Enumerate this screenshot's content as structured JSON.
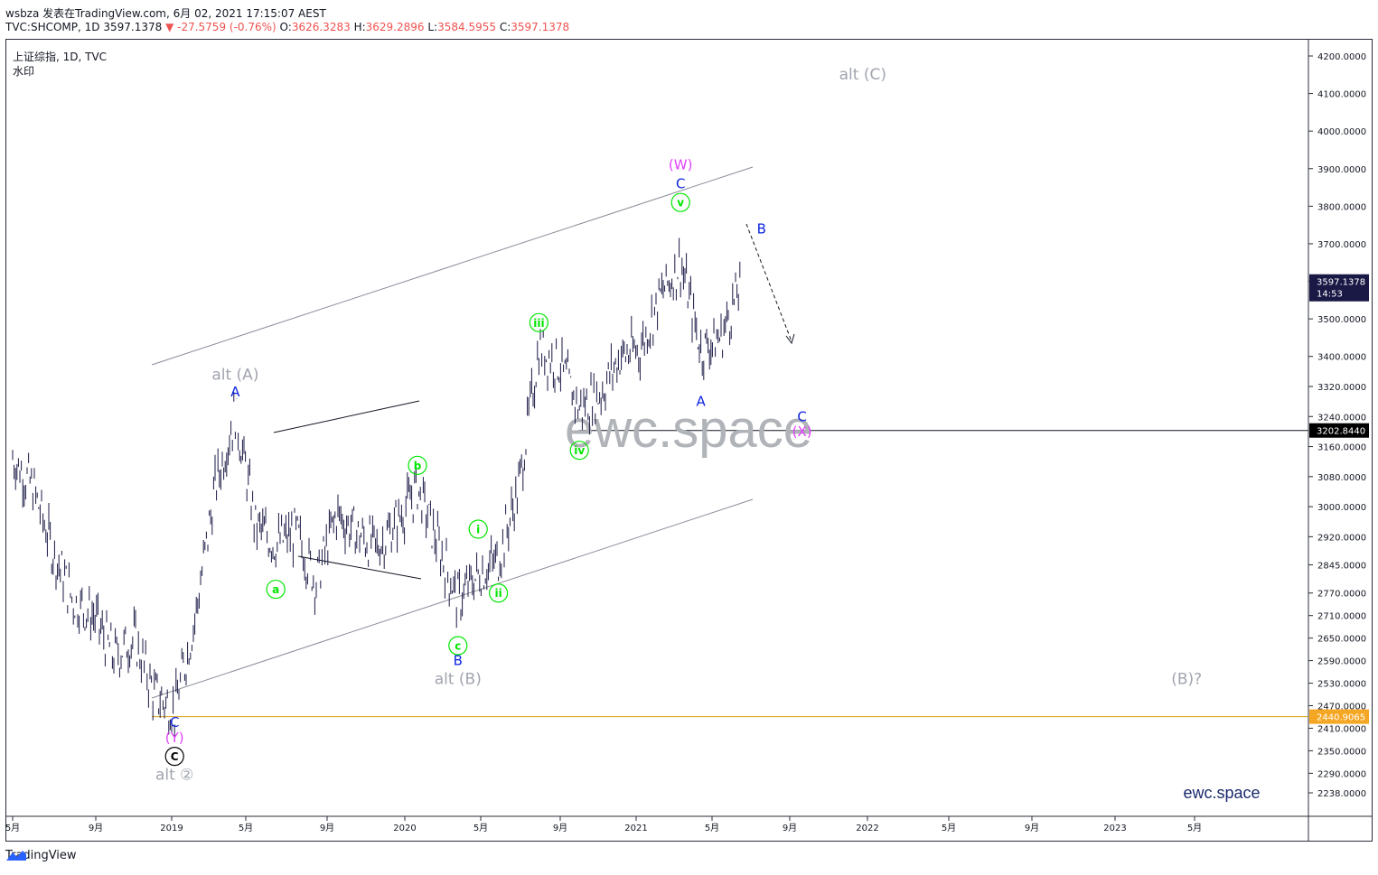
{
  "header": {
    "line1": "wsbza 发表在TradingView.com, 6月 02, 2021 17:15:07 AEST",
    "symbol": "TVC:SHCOMP, 1D 3597.1378",
    "change": "-27.5759 (-0.76%)",
    "ohlc_o_label": "O:",
    "ohlc_o": "3626.3283",
    "ohlc_h_label": "H:",
    "ohlc_h": "3629.2896",
    "ohlc_l_label": "L:",
    "ohlc_l": "3584.5955",
    "ohlc_c_label": "C:",
    "ohlc_c": "3597.1378"
  },
  "legend": {
    "title": "上证综指, 1D, TVC",
    "watermark_label": "水印"
  },
  "watermark": "ewc.space",
  "signature": "ewc.space",
  "footer": {
    "brand": "TradingView"
  },
  "colors": {
    "candles": "#1a1845",
    "magenta": "#e040fb",
    "blue": "#0d24e0",
    "green": "#00e600",
    "gray": "#a0a4ae",
    "gold": "#d4a017",
    "last_price_bg": "#1a1845",
    "support_bg": "#000000",
    "low_bg": "#f5a623"
  },
  "chart_data": {
    "type": "line",
    "title": "上证综指, 1D, TVC",
    "ylim": [
      2200,
      4250
    ],
    "y_ticks": [
      "4200.0000",
      "4100.0000",
      "4000.0000",
      "3900.0000",
      "3800.0000",
      "3700.0000",
      "3600.0000",
      "3500.0000",
      "3400.0000",
      "3320.0000",
      "3240.0000",
      "3160.0000",
      "3080.0000",
      "3000.0000",
      "2920.0000",
      "2845.0000",
      "2770.0000",
      "2710.0000",
      "2650.0000",
      "2590.0000",
      "2530.0000",
      "2470.0000",
      "2410.0000",
      "2350.0000",
      "2290.0000",
      "2238.0000"
    ],
    "x_ticks": [
      "5月",
      "9月",
      "2019",
      "5月",
      "9月",
      "2020",
      "5月",
      "9月",
      "2021",
      "5月",
      "9月",
      "2022",
      "5月",
      "9月",
      "2023",
      "5月"
    ],
    "last_price": "3597.1378",
    "last_price_time": "14:53",
    "price_lines": [
      {
        "label": "3202.8440",
        "value": 3202.844
      },
      {
        "label": "2440.9065",
        "value": 2440.9065
      }
    ],
    "series": [
      {
        "x": [
          "2018-05",
          "2018-06",
          "2018-07",
          "2018-08",
          "2018-09",
          "2018-10",
          "2018-11",
          "2018-12",
          "2019-01",
          "2019-02",
          "2019-03",
          "2019-04",
          "2019-05",
          "2019-06",
          "2019-07",
          "2019-08",
          "2019-09",
          "2019-10",
          "2019-11",
          "2019-12",
          "2020-01",
          "2020-02",
          "2020-03",
          "2020-04",
          "2020-05",
          "2020-06",
          "2020-07",
          "2020-08",
          "2020-09",
          "2020-10",
          "2020-11",
          "2020-12",
          "2021-01",
          "2021-02",
          "2021-03",
          "2021-04",
          "2021-05"
        ],
        "values": [
          3130,
          3050,
          2880,
          2750,
          2710,
          2600,
          2650,
          2500,
          2460,
          2700,
          3050,
          3250,
          2950,
          2900,
          2930,
          2800,
          2980,
          2930,
          2890,
          2960,
          3050,
          2900,
          2750,
          2820,
          2860,
          3050,
          3420,
          3380,
          3260,
          3300,
          3400,
          3420,
          3560,
          3650,
          3420,
          3450,
          3597
        ]
      }
    ],
    "annotations": [
      {
        "text": "alt (A)",
        "date": "2019-04",
        "value": 3350,
        "color": "gray"
      },
      {
        "text": "A",
        "date": "2019-04",
        "value": 3305,
        "color": "blue"
      },
      {
        "text": "alt (C)",
        "date": "2021-11",
        "value": 4150,
        "color": "gray"
      },
      {
        "text": "(W)",
        "date": "2021-02",
        "value": 3910,
        "color": "magenta"
      },
      {
        "text": "C",
        "date": "2021-02",
        "value": 3860,
        "color": "blue"
      },
      {
        "text": "v",
        "date": "2021-02",
        "value": 3810,
        "color": "green",
        "circled": true
      },
      {
        "text": "B",
        "date": "2021-06",
        "value": 3740,
        "color": "blue"
      },
      {
        "text": "iii",
        "date": "2020-07",
        "value": 3490,
        "color": "green",
        "circled": true
      },
      {
        "text": "A",
        "date": "2021-03",
        "value": 3280,
        "color": "blue"
      },
      {
        "text": "C",
        "date": "2021-08",
        "value": 3240,
        "color": "blue"
      },
      {
        "text": "(X)",
        "date": "2021-08",
        "value": 3200,
        "color": "magenta"
      },
      {
        "text": "iv",
        "date": "2020-09",
        "value": 3150,
        "color": "green",
        "circled": true
      },
      {
        "text": "b",
        "date": "2020-01",
        "value": 3110,
        "color": "green",
        "circled": true
      },
      {
        "text": "i",
        "date": "2020-04",
        "value": 2940,
        "color": "green",
        "circled": true
      },
      {
        "text": "a",
        "date": "2019-06",
        "value": 2780,
        "color": "green",
        "circled": true
      },
      {
        "text": "ii",
        "date": "2020-05",
        "value": 2770,
        "color": "green",
        "circled": true
      },
      {
        "text": "c",
        "date": "2020-03",
        "value": 2630,
        "color": "green",
        "circled": true
      },
      {
        "text": "B",
        "date": "2020-03",
        "value": 2590,
        "color": "blue"
      },
      {
        "text": "alt (B)",
        "date": "2020-03",
        "value": 2540,
        "color": "gray"
      },
      {
        "text": "(B)?",
        "date": "2023-03",
        "value": 2540,
        "color": "gray"
      },
      {
        "text": "C",
        "date": "2019-01",
        "value": 2425,
        "color": "blue"
      },
      {
        "text": "(Y)",
        "date": "2019-01",
        "value": 2385,
        "color": "magenta"
      },
      {
        "text": "C",
        "date": "2019-01",
        "value": 2335,
        "color": "black",
        "circled": true
      },
      {
        "text": "alt ②",
        "date": "2019-01",
        "value": 2285,
        "color": "gray"
      }
    ]
  }
}
